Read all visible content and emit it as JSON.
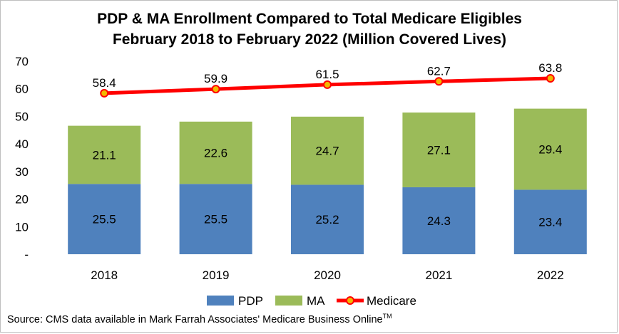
{
  "title_line1": "PDP & MA Enrollment Compared to Total Medicare Eligibles",
  "title_line2": "February 2018 to February 2022 (Million Covered Lives)",
  "source_text": "Source: CMS data available in Mark Farrah Associates' Medicare Business Online",
  "source_trademark": "TM",
  "chart_data": {
    "type": "bar",
    "categories": [
      "2018",
      "2019",
      "2020",
      "2021",
      "2022"
    ],
    "series": [
      {
        "name": "PDP",
        "kind": "stacked-bar",
        "color": "#4F81BD",
        "values": [
          25.5,
          25.5,
          25.2,
          24.3,
          23.4
        ]
      },
      {
        "name": "MA",
        "kind": "stacked-bar",
        "color": "#9BBB59",
        "values": [
          21.1,
          22.6,
          24.7,
          27.1,
          29.4
        ]
      },
      {
        "name": "Medicare",
        "kind": "line",
        "color": "#FF0000",
        "marker_color": "#F2B800",
        "values": [
          58.4,
          59.9,
          61.5,
          62.7,
          63.8
        ]
      }
    ],
    "ylim": [
      0,
      70
    ],
    "yticks": [
      0,
      10,
      20,
      30,
      40,
      50,
      60,
      70
    ],
    "ytick_labels": [
      "-",
      "10",
      "20",
      "30",
      "40",
      "50",
      "60",
      "70"
    ],
    "grid": false,
    "legend": "bottom"
  }
}
